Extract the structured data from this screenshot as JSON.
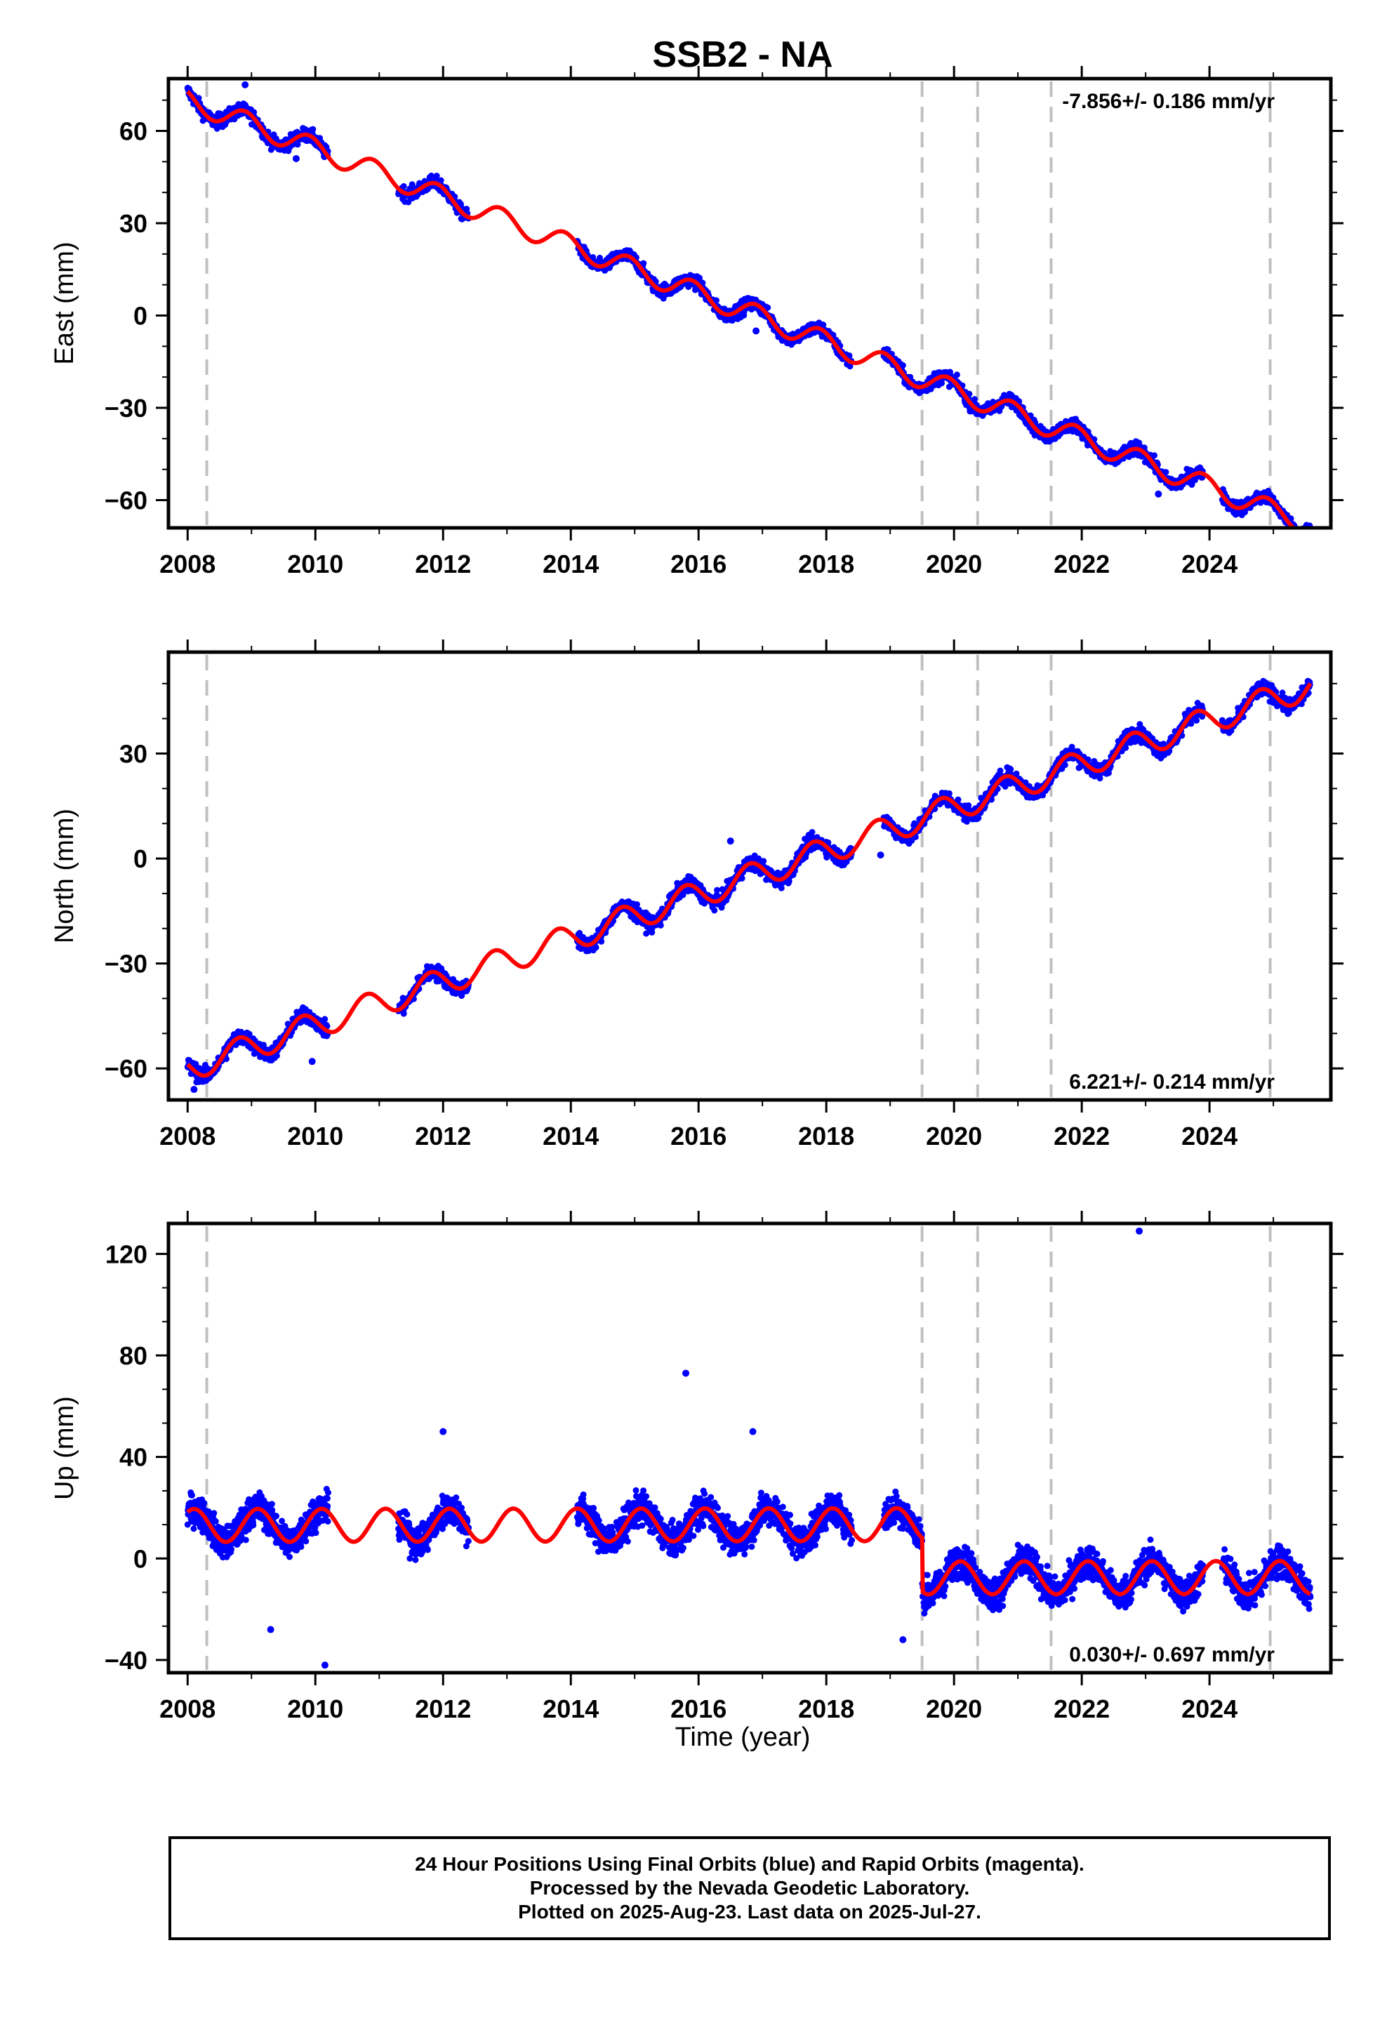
{
  "figure_title": "SSB2 - NA",
  "colors": {
    "data": "#0000ff",
    "model": "#ff0000",
    "steps": "#c0c0c0",
    "frame": "#000000"
  },
  "x_axis": {
    "label": "Time (year)",
    "range": [
      2007.7,
      2025.9
    ],
    "ticks": [
      2008,
      2010,
      2012,
      2014,
      2016,
      2018,
      2020,
      2022,
      2024
    ]
  },
  "step_lines": [
    2008.3,
    2019.5,
    2020.37,
    2021.52,
    2024.95
  ],
  "footer": {
    "line1": "24 Hour Positions Using Final Orbits (blue) and Rapid Orbits (magenta).",
    "line2": "Processed by the Nevada Geodetic Laboratory.",
    "line3": "Plotted on 2025-Aug-23. Last data on 2025-Jul-27."
  },
  "chart_data": [
    {
      "type": "scatter",
      "component": "east",
      "ylabel": "East (mm)",
      "ylim": [
        -69,
        77
      ],
      "yticks": [
        -60,
        -30,
        0,
        30,
        60
      ],
      "rate_text": "-7.856+/- 0.186 mm/yr",
      "rate_position": "top-right",
      "data_segments": [
        [
          2008.0,
          2010.2
        ],
        [
          2011.3,
          2012.4
        ],
        [
          2014.1,
          2018.4
        ],
        [
          2018.9,
          2023.9
        ],
        [
          2024.2,
          2025.58
        ]
      ],
      "model": {
        "rate_mm_per_yr": -7.856,
        "value_at_2008": 70,
        "annual_amplitude": 3.5,
        "annual_phase_year": 0.65,
        "steps": []
      },
      "outliers": [
        [
          2009.7,
          51
        ],
        [
          2008.9,
          75
        ],
        [
          2016.9,
          -5
        ],
        [
          2023.2,
          -58
        ]
      ]
    },
    {
      "type": "scatter",
      "component": "north",
      "ylabel": "North (mm)",
      "ylim": [
        -69,
        59
      ],
      "yticks": [
        -60,
        -30,
        0,
        30
      ],
      "rate_text": "6.221+/- 0.214 mm/yr",
      "rate_position": "bottom-right",
      "data_segments": [
        [
          2008.0,
          2010.2
        ],
        [
          2011.3,
          2012.4
        ],
        [
          2014.1,
          2018.4
        ],
        [
          2018.9,
          2023.9
        ],
        [
          2024.2,
          2025.58
        ]
      ],
      "model": {
        "rate_mm_per_yr": 6.221,
        "value_at_2008": -60,
        "annual_amplitude": 3.8,
        "annual_phase_year": 0.55,
        "steps": []
      },
      "outliers": [
        [
          2008.1,
          -66
        ],
        [
          2009.95,
          -58
        ],
        [
          2016.5,
          5
        ],
        [
          2018.85,
          1
        ]
      ]
    },
    {
      "type": "scatter",
      "component": "up",
      "ylabel": "Up (mm)",
      "ylim": [
        -45,
        132
      ],
      "yticks": [
        -40,
        0,
        40,
        80,
        120
      ],
      "rate_text": "0.030+/- 0.697 mm/yr",
      "rate_position": "bottom-right",
      "data_segments": [
        [
          2008.0,
          2010.2
        ],
        [
          2011.3,
          2012.4
        ],
        [
          2014.1,
          2018.4
        ],
        [
          2018.9,
          2023.9
        ],
        [
          2024.2,
          2025.58
        ]
      ],
      "model": {
        "rate_mm_per_yr": 0.03,
        "value_at_2008": 13,
        "annual_amplitude": 6.5,
        "annual_phase_year": 0.85,
        "steps": [
          [
            2019.5,
            -21
          ]
        ]
      },
      "outliers": [
        [
          2022.9,
          129
        ],
        [
          2015.8,
          73
        ],
        [
          2016.85,
          50
        ],
        [
          2012.0,
          50
        ],
        [
          2010.15,
          -42
        ],
        [
          2009.3,
          -28
        ],
        [
          2019.2,
          -32
        ]
      ]
    }
  ]
}
